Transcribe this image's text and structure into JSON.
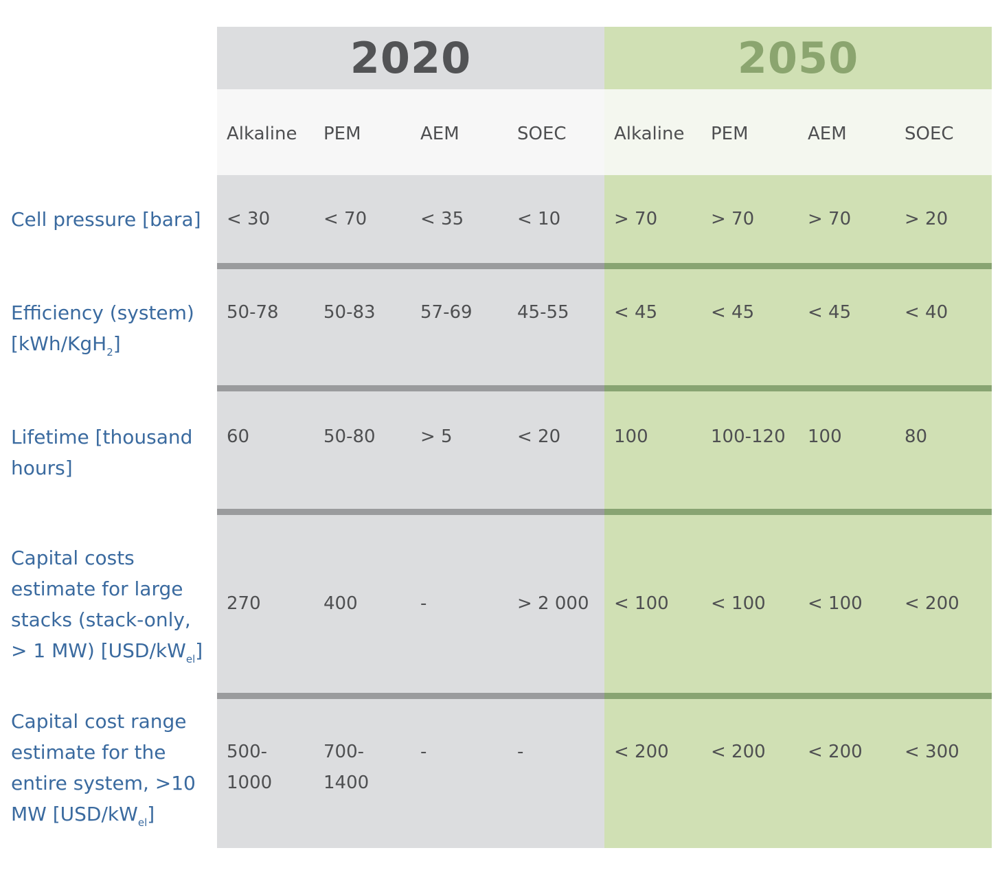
{
  "years": [
    "2020",
    "2050"
  ],
  "technologies": [
    "Alkaline",
    "PEM",
    "AEM",
    "SOEC"
  ],
  "rows": [
    {
      "label": "Cell pressure [bara]",
      "values_2020": [
        "< 30",
        "< 70",
        "< 35",
        "< 10"
      ],
      "values_2050": [
        "> 70",
        "> 70",
        "> 70",
        "> 20"
      ]
    },
    {
      "label_parts": [
        "Efficiency (system) [kWh/KgH",
        "2",
        "]"
      ],
      "values_2020": [
        "50-78",
        "50-83",
        "57-69",
        "45-55"
      ],
      "values_2050": [
        "< 45",
        "< 45",
        "< 45",
        "< 40"
      ]
    },
    {
      "label": "Lifetime [thousand hours]",
      "values_2020": [
        "60",
        "50-80",
        "> 5",
        "< 20"
      ],
      "values_2050": [
        "100",
        "100-120",
        "100",
        "80"
      ]
    },
    {
      "label_parts": [
        "Capital costs estimate for large stacks (stack-only, > 1 MW) [USD/kW",
        "el",
        "]"
      ],
      "values_2020": [
        "270",
        "400",
        "-",
        "> 2 000"
      ],
      "values_2050": [
        "< 100",
        "< 100",
        "< 100",
        "< 200"
      ]
    },
    {
      "label_parts": [
        "Capital cost range estimate for the entire system, >10 MW [USD/kW",
        "el",
        "]"
      ],
      "values_2020": [
        "500-1000",
        "700-1400",
        "-",
        "-"
      ],
      "values_2050": [
        "< 200",
        "< 200",
        "< 200",
        "< 300"
      ]
    }
  ]
}
